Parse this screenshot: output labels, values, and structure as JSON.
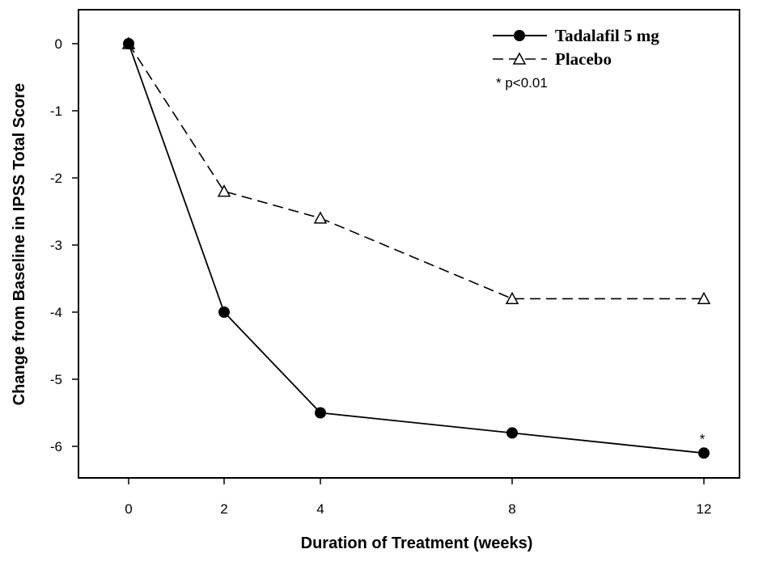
{
  "chart_data": {
    "type": "line",
    "title": "",
    "xlabel": "Duration of Treatment (weeks)",
    "ylabel": "Change from Baseline in IPSS Total Score",
    "categories": [
      "0",
      "2",
      "4",
      "8",
      "12"
    ],
    "x": [
      0,
      1,
      2,
      3,
      4
    ],
    "ylim": [
      -6.5,
      0.5
    ],
    "yticks": [
      0,
      -1,
      -2,
      -3,
      -4,
      -5,
      -6
    ],
    "ytick_labels": [
      "0",
      "-1",
      "-2",
      "-3",
      "-4",
      "-5",
      "-6"
    ],
    "grid": false,
    "legend_position": "top-right",
    "series": [
      {
        "name": "Tadalafil 5 mg",
        "values": [
          0,
          -4.0,
          -5.5,
          -5.8,
          -6.1
        ],
        "marker": "filled-circle",
        "line_style": "solid",
        "color": "#000000"
      },
      {
        "name": "Placebo",
        "values": [
          0,
          -2.2,
          -2.6,
          -3.8,
          -3.8
        ],
        "marker": "open-triangle",
        "line_style": "dashed",
        "color": "#000000"
      }
    ],
    "annotations": [
      {
        "text": "*",
        "series": "Tadalafil 5 mg",
        "category": "12"
      }
    ],
    "legend_note": "* p<0.01"
  }
}
